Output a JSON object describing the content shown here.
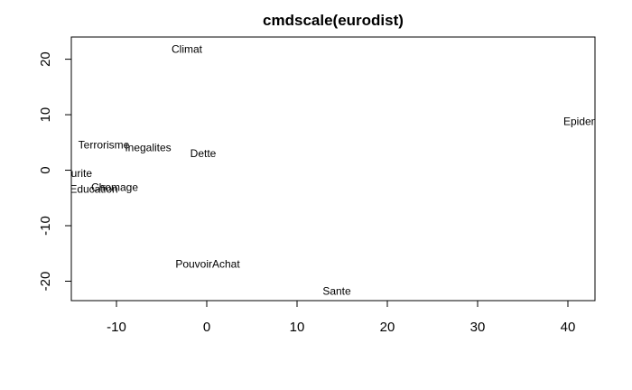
{
  "chart_data": {
    "type": "scatter",
    "title": "cmdscale(eurodist)",
    "xlabel": "",
    "ylabel": "",
    "xlim": [
      -15,
      43
    ],
    "ylim": [
      -23.5,
      24
    ],
    "x_ticks": [
      -10,
      0,
      10,
      20,
      30,
      40
    ],
    "y_ticks": [
      -20,
      -10,
      0,
      10,
      20
    ],
    "grid": false,
    "points": [
      {
        "label": "Climat",
        "x": -2.2,
        "y": 21.8
      },
      {
        "label": "Epidemie",
        "x": 42.0,
        "y": 8.8
      },
      {
        "label": "Terrorisme",
        "x": -11.4,
        "y": 4.6
      },
      {
        "label": "Inegalites",
        "x": -6.5,
        "y": 4.1
      },
      {
        "label": "Dette",
        "x": -0.4,
        "y": 3.0
      },
      {
        "label": "Insecurite",
        "x": -15.3,
        "y": -0.6
      },
      {
        "label": "Chomage",
        "x": -10.2,
        "y": -3.1
      },
      {
        "label": "Education",
        "x": -12.5,
        "y": -3.4
      },
      {
        "label": "PouvoirAchat",
        "x": 0.1,
        "y": -16.9
      },
      {
        "label": "Sante",
        "x": 14.4,
        "y": -21.8
      }
    ]
  }
}
